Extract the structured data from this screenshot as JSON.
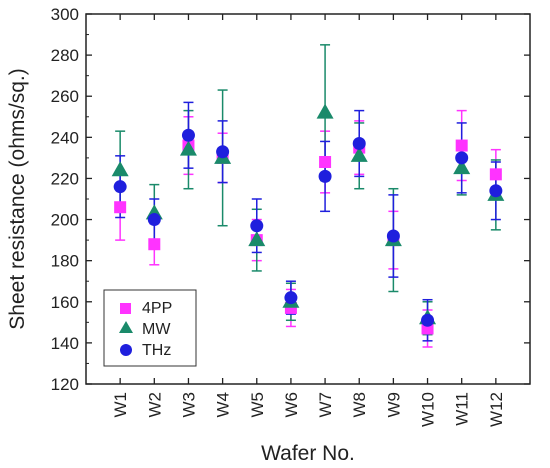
{
  "chart_data": {
    "type": "scatter",
    "title": "",
    "xlabel": "Wafer No.",
    "ylabel": "Sheet resistance (ohms/sq.)",
    "ylim": [
      120,
      300
    ],
    "yticks": [
      120,
      140,
      160,
      180,
      200,
      220,
      240,
      260,
      280,
      300
    ],
    "categories": [
      "W1",
      "W2",
      "W3",
      "W4",
      "W5",
      "W6",
      "W7",
      "W8",
      "W9",
      "W10",
      "W11",
      "W12"
    ],
    "grid": false,
    "legend_position": "bottom-left",
    "series": [
      {
        "name": "4PP",
        "marker": "square",
        "color": "#ff33ff",
        "values": [
          206,
          188,
          236,
          230,
          190,
          157,
          228,
          235,
          190,
          147,
          236,
          222
        ],
        "errors": [
          16,
          10,
          14,
          12,
          10,
          9,
          15,
          13,
          14,
          9,
          17,
          12
        ]
      },
      {
        "name": "MW",
        "marker": "triangle",
        "color": "#1a8a6a",
        "values": [
          224,
          203,
          234,
          230,
          190,
          160,
          252,
          231,
          190,
          152,
          225,
          212
        ],
        "errors": [
          19,
          14,
          19,
          33,
          15,
          9,
          33,
          16,
          25,
          8,
          13,
          17
        ]
      },
      {
        "name": "THz",
        "marker": "circle",
        "color": "#1f1fdd",
        "values": [
          216,
          200,
          241,
          233,
          197,
          162,
          221,
          237,
          192,
          151,
          230,
          214
        ],
        "errors": [
          15,
          10,
          16,
          15,
          13,
          8,
          17,
          16,
          20,
          10,
          17,
          14
        ]
      }
    ]
  }
}
